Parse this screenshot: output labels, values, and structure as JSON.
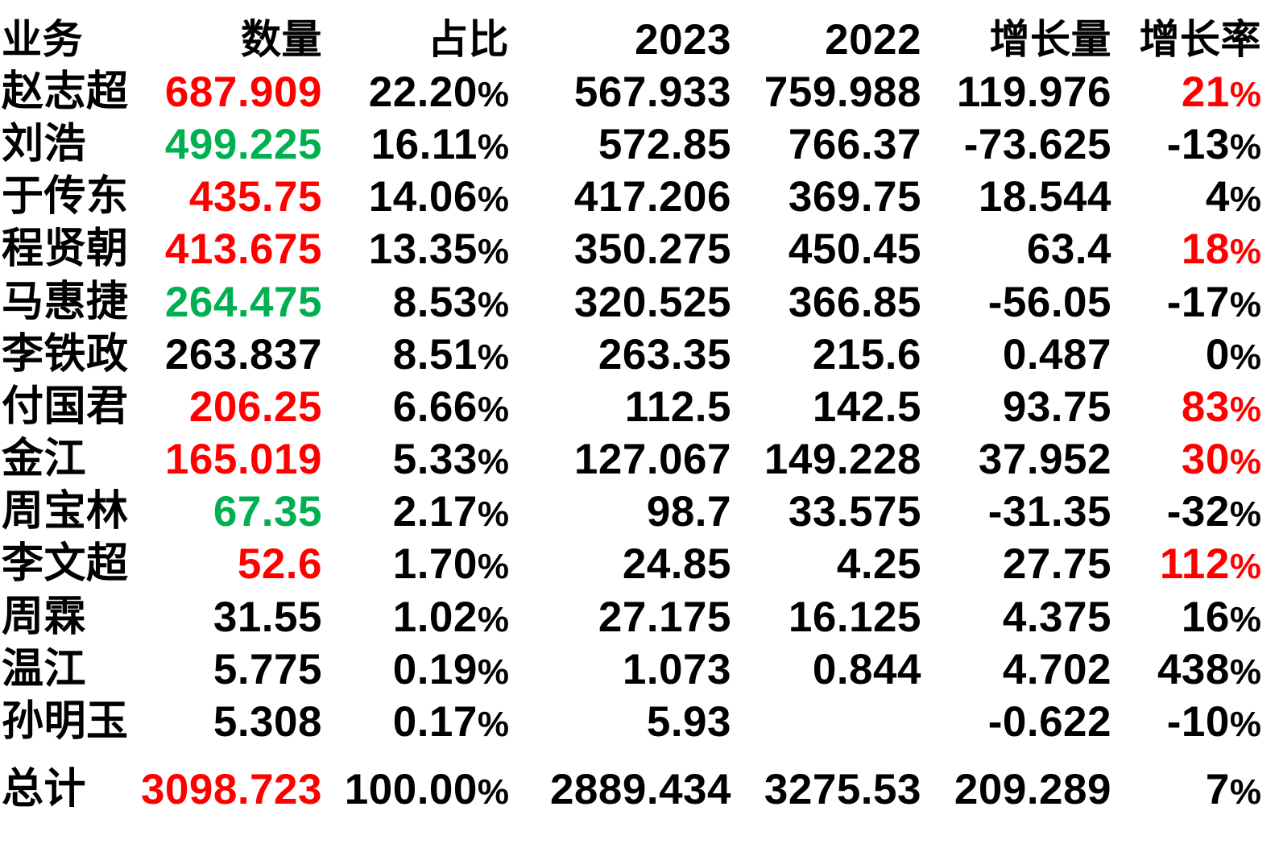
{
  "colors": {
    "text": "#000000",
    "red": "#ff0000",
    "green": "#00b050",
    "background": "#ffffff"
  },
  "table": {
    "headers": [
      "业务",
      "数量",
      "占比",
      "2023",
      "2022",
      "增长量",
      "增长率"
    ],
    "rows": [
      {
        "name": "赵志超",
        "qty": "687.909",
        "qty_color": "red",
        "share": "22.20%",
        "y2023": "567.933",
        "y2022": "759.988",
        "growth": "119.976",
        "rate": "21%",
        "rate_color": "red"
      },
      {
        "name": "刘浩",
        "qty": "499.225",
        "qty_color": "green",
        "share": "16.11%",
        "y2023": "572.85",
        "y2022": "766.37",
        "growth": "-73.625",
        "rate": "-13%",
        "rate_color": "black"
      },
      {
        "name": "于传东",
        "qty": "435.75",
        "qty_color": "red",
        "share": "14.06%",
        "y2023": "417.206",
        "y2022": "369.75",
        "growth": "18.544",
        "rate": "4%",
        "rate_color": "black"
      },
      {
        "name": "程贤朝",
        "qty": "413.675",
        "qty_color": "red",
        "share": "13.35%",
        "y2023": "350.275",
        "y2022": "450.45",
        "growth": "63.4",
        "rate": "18%",
        "rate_color": "red"
      },
      {
        "name": "马惠捷",
        "qty": "264.475",
        "qty_color": "green",
        "share": "8.53%",
        "y2023": "320.525",
        "y2022": "366.85",
        "growth": "-56.05",
        "rate": "-17%",
        "rate_color": "black"
      },
      {
        "name": "李铁政",
        "qty": "263.837",
        "qty_color": "black",
        "share": "8.51%",
        "y2023": "263.35",
        "y2022": "215.6",
        "growth": "0.487",
        "rate": "0%",
        "rate_color": "black"
      },
      {
        "name": "付国君",
        "qty": "206.25",
        "qty_color": "red",
        "share": "6.66%",
        "y2023": "112.5",
        "y2022": "142.5",
        "growth": "93.75",
        "rate": "83%",
        "rate_color": "red"
      },
      {
        "name": "金江",
        "qty": "165.019",
        "qty_color": "red",
        "share": "5.33%",
        "y2023": "127.067",
        "y2022": "149.228",
        "growth": "37.952",
        "rate": "30%",
        "rate_color": "red"
      },
      {
        "name": "周宝林",
        "qty": "67.35",
        "qty_color": "green",
        "share": "2.17%",
        "y2023": "98.7",
        "y2022": "33.575",
        "growth": "-31.35",
        "rate": "-32%",
        "rate_color": "black"
      },
      {
        "name": "李文超",
        "qty": "52.6",
        "qty_color": "red",
        "share": "1.70%",
        "y2023": "24.85",
        "y2022": "4.25",
        "growth": "27.75",
        "rate": "112%",
        "rate_color": "red"
      },
      {
        "name": "周霖",
        "qty": "31.55",
        "qty_color": "black",
        "share": "1.02%",
        "y2023": "27.175",
        "y2022": "16.125",
        "growth": "4.375",
        "rate": "16%",
        "rate_color": "black"
      },
      {
        "name": "温江",
        "qty": "5.775",
        "qty_color": "black",
        "share": "0.19%",
        "y2023": "1.073",
        "y2022": "0.844",
        "growth": "4.702",
        "rate": "438%",
        "rate_color": "black"
      },
      {
        "name": "孙明玉",
        "qty": "5.308",
        "qty_color": "black",
        "share": "0.17%",
        "y2023": "5.93",
        "y2022": "",
        "growth": "-0.622",
        "rate": "-10%",
        "rate_color": "black"
      }
    ],
    "total": {
      "name": "总计",
      "qty": "3098.723",
      "qty_color": "red",
      "share": "100.00%",
      "y2023": "2889.434",
      "y2022": "3275.53",
      "growth": "209.289",
      "rate": "7%",
      "rate_color": "black"
    }
  }
}
